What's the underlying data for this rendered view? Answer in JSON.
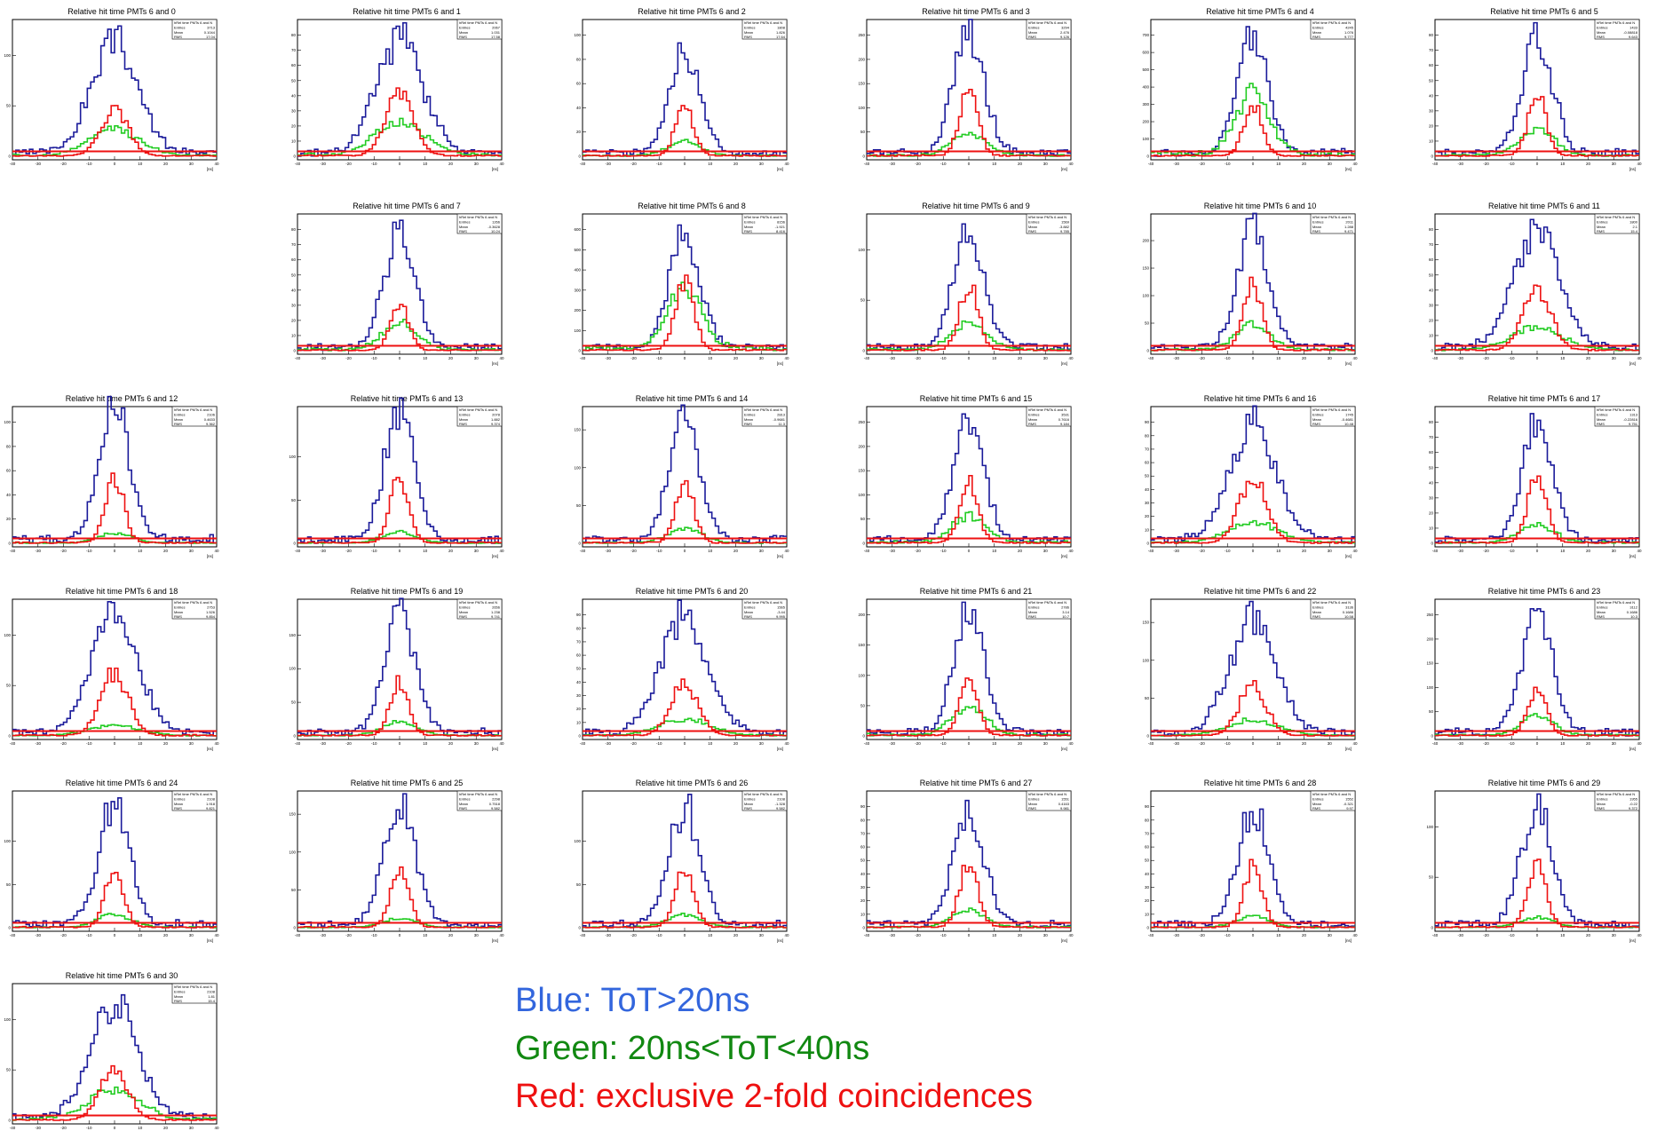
{
  "legend": {
    "blue": "Blue: ToT>20ns",
    "green": "Green: 20ns<ToT<40ns",
    "red": "Red: exclusive 2-fold coincidences"
  },
  "colors": {
    "blue": "#1a1a9a",
    "green": "#22cc22",
    "red": "#ee1111",
    "frame": "#000000"
  },
  "stats_labels": {
    "header": "hRel time PMTs 6 and N",
    "entries": "Entries",
    "mean": "Mean",
    "rms": "RMS"
  },
  "x_unit": "[ns]",
  "chart_data": [
    {
      "type": "histogram",
      "title": "Relative hit time PMTs 6 and 0",
      "ymax": 120,
      "peak": [
        110,
        45,
        25
      ],
      "wide": true,
      "stats": {
        "entries": "3713",
        "mean": "0.1044",
        "rms": "17.04"
      }
    },
    {
      "type": "histogram",
      "title": "Relative hit time PMTs 6 and 1",
      "ymax": 80,
      "peak": [
        75,
        42,
        22
      ],
      "wide": true,
      "stats": {
        "entries": "2067",
        "mean": "1.031",
        "rms": "17.58"
      }
    },
    {
      "type": "histogram",
      "title": "Relative hit time PMTs 6 and 2",
      "ymax": 100,
      "peak": [
        82,
        40,
        12
      ],
      "stats": {
        "entries": "1808",
        "mean": "1.826",
        "rms": "17.64"
      }
    },
    {
      "type": "histogram",
      "title": "Relative hit time PMTs 6 and 3",
      "ymax": 250,
      "peak": [
        240,
        130,
        45
      ],
      "stats": {
        "entries": "3294",
        "mean": "2.476",
        "rms": "9.126"
      }
    },
    {
      "type": "histogram",
      "title": "Relative hit time PMTs 6 and 4",
      "ymax": 700,
      "peak": [
        680,
        300,
        360
      ],
      "stats": {
        "entries": "4245",
        "mean": "1.076",
        "rms": "9.777"
      }
    },
    {
      "type": "histogram",
      "title": "Relative hit time PMTs 6 and 5",
      "ymax": 80,
      "peak": [
        75,
        40,
        18
      ],
      "stats": {
        "entries": "1433",
        "mean": "-0.08818",
        "rms": "9.643"
      }
    },
    {
      "type": "histogram",
      "title": "Relative hit time PMTs 6 and 7",
      "ymax": 80,
      "peak": [
        75,
        30,
        18
      ],
      "stats": {
        "entries": "1266",
        "mean": "-0.3628",
        "rms": "10.24"
      }
    },
    {
      "type": "histogram",
      "title": "Relative hit time PMTs 6 and 8",
      "ymax": 600,
      "peak": [
        560,
        340,
        300
      ],
      "stats": {
        "entries": "8156",
        "mean": "-1.921",
        "rms": "8.416"
      }
    },
    {
      "type": "histogram",
      "title": "Relative hit time PMTs 6 and 9",
      "ymax": 120,
      "peak": [
        115,
        65,
        28
      ],
      "stats": {
        "entries": "1569",
        "mean": "-3.882",
        "rms": "9.785"
      }
    },
    {
      "type": "histogram",
      "title": "Relative hit time PMTs 6 and 10",
      "ymax": 220,
      "peak": [
        210,
        120,
        45
      ],
      "stats": {
        "entries": "2011",
        "mean": "1.288",
        "rms": "9.471"
      }
    },
    {
      "type": "histogram",
      "title": "Relative hit time PMTs 6 and 11",
      "ymax": 80,
      "peak": [
        75,
        40,
        15
      ],
      "wide": true,
      "stats": {
        "entries": "1800",
        "mean": "2.1",
        "rms": "15.4"
      }
    },
    {
      "type": "histogram",
      "title": "Relative hit time PMTs 6 and 12",
      "ymax": 100,
      "peak": [
        110,
        55,
        8
      ],
      "stats": {
        "entries": "2106",
        "mean": "0.4633",
        "rms": "9.362"
      }
    },
    {
      "type": "histogram",
      "title": "Relative hit time PMTs 6 and 13",
      "ymax": 140,
      "peak": [
        145,
        75,
        12
      ],
      "stats": {
        "entries": "2078",
        "mean": "1.882",
        "rms": "9.374"
      }
    },
    {
      "type": "histogram",
      "title": "Relative hit time PMTs 6 and 14",
      "ymax": 160,
      "peak": [
        155,
        80,
        18
      ],
      "stats": {
        "entries": "2813",
        "mean": "-0.9681",
        "rms": "11.3"
      }
    },
    {
      "type": "histogram",
      "title": "Relative hit time PMTs 6 and 15",
      "ymax": 250,
      "peak": [
        240,
        125,
        55
      ],
      "stats": {
        "entries": "3531",
        "mean": "0.7616",
        "rms": "9.184"
      }
    },
    {
      "type": "histogram",
      "title": "Relative hit time PMTs 6 and 16",
      "ymax": 90,
      "peak": [
        85,
        48,
        15
      ],
      "wide": true,
      "stats": {
        "entries": "1745",
        "mean": "-0.4681",
        "rms": "10.48"
      }
    },
    {
      "type": "histogram",
      "title": "Relative hit time PMTs 6 and 17",
      "ymax": 80,
      "peak": [
        75,
        45,
        12
      ],
      "stats": {
        "entries": "1313",
        "mean": "-0.22816",
        "rms": "9.751"
      }
    },
    {
      "type": "histogram",
      "title": "Relative hit time PMTs 6 and 18",
      "ymax": 120,
      "peak": [
        115,
        62,
        10
      ],
      "wide": true,
      "stats": {
        "entries": "2753",
        "mean": "1.526",
        "rms": "9.854"
      }
    },
    {
      "type": "histogram",
      "title": "Relative hit time PMTs 6 and 19",
      "ymax": 180,
      "peak": [
        175,
        80,
        20
      ],
      "stats": {
        "entries": "2656",
        "mean": "1.238",
        "rms": "9.741"
      }
    },
    {
      "type": "histogram",
      "title": "Relative hit time PMTs 6 and 20",
      "ymax": 90,
      "peak": [
        85,
        38,
        12
      ],
      "wide": true,
      "stats": {
        "entries": "1565",
        "mean": "-3.44",
        "rms": "9.995"
      }
    },
    {
      "type": "histogram",
      "title": "Relative hit time PMTs 6 and 21",
      "ymax": 200,
      "peak": [
        195,
        90,
        45
      ],
      "stats": {
        "entries": "2786",
        "mean": "3.14",
        "rms": "10.7"
      }
    },
    {
      "type": "histogram",
      "title": "Relative hit time PMTs 6 and 22",
      "ymax": 160,
      "peak": [
        150,
        65,
        20
      ],
      "wide": true,
      "stats": {
        "entries": "3136",
        "mean": "0.1686",
        "rms": "10.58"
      }
    },
    {
      "type": "histogram",
      "title": "Relative hit time PMTs 6 and 23",
      "ymax": 250,
      "peak": [
        240,
        100,
        40
      ],
      "stats": {
        "entries": "3112",
        "mean": "0.1686",
        "rms": "10.3"
      }
    },
    {
      "type": "histogram",
      "title": "Relative hit time PMTs 6 and 24",
      "ymax": 140,
      "peak": [
        140,
        65,
        15
      ],
      "stats": {
        "entries": "2108",
        "mean": "1.918",
        "rms": "9.821"
      }
    },
    {
      "type": "histogram",
      "title": "Relative hit time PMTs 6 and 25",
      "ymax": 160,
      "peak": [
        165,
        75,
        12
      ],
      "stats": {
        "entries": "2298",
        "mean": "0.7518",
        "rms": "9.582"
      }
    },
    {
      "type": "histogram",
      "title": "Relative hit time PMTs 6 and 26",
      "ymax": 140,
      "peak": [
        135,
        70,
        15
      ],
      "stats": {
        "entries": "2108",
        "mean": "-1.328",
        "rms": "9.582"
      }
    },
    {
      "type": "histogram",
      "title": "Relative hit time PMTs 6 and 27",
      "ymax": 90,
      "peak": [
        85,
        48,
        12
      ],
      "stats": {
        "entries": "1551",
        "mean": "0.4163",
        "rms": "9.981"
      }
    },
    {
      "type": "histogram",
      "title": "Relative hit time PMTs 6 and 28",
      "ymax": 90,
      "peak": [
        85,
        45,
        8
      ],
      "stats": {
        "entries": "1552",
        "mean": "-0.321",
        "rms": "9.97"
      }
    },
    {
      "type": "histogram",
      "title": "Relative hit time PMTs 6 and 29",
      "ymax": 120,
      "peak": [
        120,
        60,
        10
      ],
      "stats": {
        "entries": "1955",
        "mean": "-0.22",
        "rms": "9.372"
      }
    },
    {
      "type": "histogram",
      "title": "Relative hit time PMTs 6 and 30",
      "ymax": 120,
      "peak": [
        115,
        50,
        30
      ],
      "wide": true,
      "stats": {
        "entries": "2108",
        "mean": "1.81",
        "rms": "15.4"
      }
    }
  ]
}
